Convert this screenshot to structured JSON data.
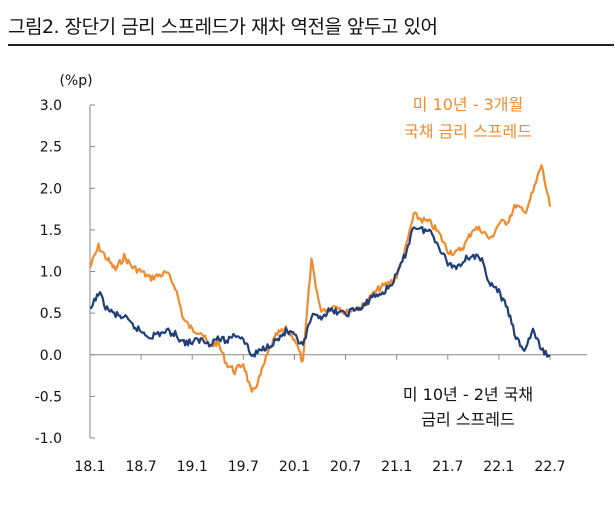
{
  "figure_title": "그림2. 장단기 금리 스프레드가 재차 역전을 앞두고 있어",
  "colors": {
    "orange": "#f08c2e",
    "navy": "#1f3f7a",
    "axis": "#888888"
  },
  "chart_data": {
    "type": "line",
    "y_unit": "(%p)",
    "ylim": [
      -1.0,
      3.0
    ],
    "y_ticks": [
      "3.0",
      "2.5",
      "2.0",
      "1.5",
      "1.0",
      "0.5",
      "0.0",
      "-0.5",
      "-1.0"
    ],
    "y_tick_values": [
      3.0,
      2.5,
      2.0,
      1.5,
      1.0,
      0.5,
      0.0,
      -0.5,
      -1.0
    ],
    "x_ticks": [
      "18.1",
      "18.7",
      "19.1",
      "19.7",
      "20.1",
      "20.7",
      "21.1",
      "21.7",
      "22.1",
      "22.7"
    ],
    "grid": false,
    "series": [
      {
        "name": "미 10년 - 3개월 국채 금리 스프레드",
        "label_lines": [
          "미 10년 - 3개월",
          "국채 금리 스프레드"
        ],
        "color": "#f08c2e",
        "points": [
          [
            "18.1",
            1.05
          ],
          [
            "18.2",
            1.3
          ],
          [
            "18.3",
            1.15
          ],
          [
            "18.4",
            1.02
          ],
          [
            "18.5",
            1.18
          ],
          [
            "18.6",
            1.05
          ],
          [
            "18.7",
            1.0
          ],
          [
            "18.8",
            0.92
          ],
          [
            "18.9",
            0.95
          ],
          [
            "18.10",
            0.98
          ],
          [
            "18.11",
            0.82
          ],
          [
            "18.12",
            0.42
          ],
          [
            "19.1",
            0.3
          ],
          [
            "19.2",
            0.28
          ],
          [
            "19.3",
            0.1
          ],
          [
            "19.4",
            0.15
          ],
          [
            "19.5",
            -0.1
          ],
          [
            "19.6",
            -0.2
          ],
          [
            "19.7",
            -0.1
          ],
          [
            "19.8",
            -0.48
          ],
          [
            "19.9",
            -0.25
          ],
          [
            "19.10",
            0.05
          ],
          [
            "19.11",
            0.25
          ],
          [
            "19.12",
            0.3
          ],
          [
            "20.1",
            0.2
          ],
          [
            "20.2",
            -0.1
          ],
          [
            "20.3",
            1.15
          ],
          [
            "20.4",
            0.55
          ],
          [
            "20.5",
            0.55
          ],
          [
            "20.6",
            0.6
          ],
          [
            "20.7",
            0.5
          ],
          [
            "20.8",
            0.55
          ],
          [
            "20.9",
            0.58
          ],
          [
            "20.10",
            0.7
          ],
          [
            "20.11",
            0.8
          ],
          [
            "20.12",
            0.85
          ],
          [
            "21.1",
            0.95
          ],
          [
            "21.2",
            1.25
          ],
          [
            "21.3",
            1.68
          ],
          [
            "21.4",
            1.62
          ],
          [
            "21.5",
            1.58
          ],
          [
            "21.6",
            1.45
          ],
          [
            "21.7",
            1.25
          ],
          [
            "21.8",
            1.22
          ],
          [
            "21.9",
            1.32
          ],
          [
            "21.10",
            1.52
          ],
          [
            "21.11",
            1.5
          ],
          [
            "21.12",
            1.38
          ],
          [
            "22.1",
            1.58
          ],
          [
            "22.2",
            1.6
          ],
          [
            "22.3",
            1.8
          ],
          [
            "22.4",
            1.7
          ],
          [
            "22.5",
            1.95
          ],
          [
            "22.6",
            2.28
          ],
          [
            "22.7",
            1.78
          ]
        ]
      },
      {
        "name": "미 10년 - 2년 국채 금리 스프레드",
        "label_lines": [
          "미 10년 - 2년 국채",
          "금리 스프레드"
        ],
        "color": "#1f3f7a",
        "points": [
          [
            "18.1",
            0.52
          ],
          [
            "18.2",
            0.75
          ],
          [
            "18.3",
            0.55
          ],
          [
            "18.4",
            0.48
          ],
          [
            "18.5",
            0.45
          ],
          [
            "18.6",
            0.35
          ],
          [
            "18.7",
            0.28
          ],
          [
            "18.8",
            0.22
          ],
          [
            "18.9",
            0.25
          ],
          [
            "18.10",
            0.28
          ],
          [
            "18.11",
            0.25
          ],
          [
            "18.12",
            0.15
          ],
          [
            "19.1",
            0.15
          ],
          [
            "19.2",
            0.18
          ],
          [
            "19.3",
            0.14
          ],
          [
            "19.4",
            0.2
          ],
          [
            "19.5",
            0.16
          ],
          [
            "19.6",
            0.25
          ],
          [
            "19.7",
            0.2
          ],
          [
            "19.8",
            -0.02
          ],
          [
            "19.9",
            0.05
          ],
          [
            "19.10",
            0.12
          ],
          [
            "19.11",
            0.18
          ],
          [
            "19.12",
            0.28
          ],
          [
            "20.1",
            0.22
          ],
          [
            "20.2",
            0.1
          ],
          [
            "20.3",
            0.45
          ],
          [
            "20.4",
            0.45
          ],
          [
            "20.5",
            0.52
          ],
          [
            "20.6",
            0.52
          ],
          [
            "20.7",
            0.48
          ],
          [
            "20.8",
            0.55
          ],
          [
            "20.9",
            0.55
          ],
          [
            "20.10",
            0.7
          ],
          [
            "20.11",
            0.72
          ],
          [
            "20.12",
            0.8
          ],
          [
            "21.1",
            0.95
          ],
          [
            "21.2",
            1.2
          ],
          [
            "21.3",
            1.55
          ],
          [
            "21.4",
            1.5
          ],
          [
            "21.5",
            1.48
          ],
          [
            "21.6",
            1.3
          ],
          [
            "21.7",
            1.1
          ],
          [
            "21.8",
            1.05
          ],
          [
            "21.9",
            1.15
          ],
          [
            "21.10",
            1.2
          ],
          [
            "21.11",
            1.12
          ],
          [
            "21.12",
            0.85
          ],
          [
            "22.1",
            0.75
          ],
          [
            "22.2",
            0.55
          ],
          [
            "22.3",
            0.2
          ],
          [
            "22.4",
            0.05
          ],
          [
            "22.5",
            0.3
          ],
          [
            "22.6",
            0.05
          ],
          [
            "22.7",
            -0.02
          ]
        ]
      }
    ]
  }
}
